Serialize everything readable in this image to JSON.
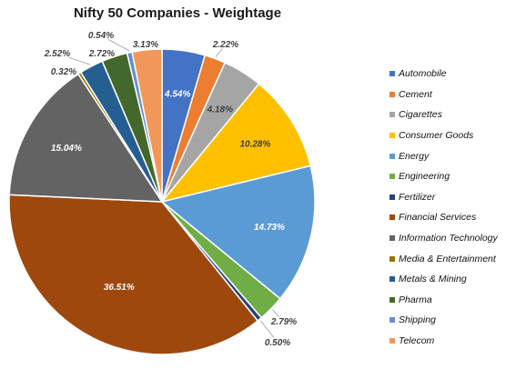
{
  "chart_data": {
    "type": "pie",
    "title": "Nifty 50 Companies - Weightage",
    "legend_position": "right",
    "slices": [
      {
        "name": "Automobile",
        "value": 4.54,
        "label": "4.54%",
        "color": "#4472C4"
      },
      {
        "name": "Cement",
        "value": 2.22,
        "label": "2.22%",
        "color": "#ED7D31"
      },
      {
        "name": "Cigarettes",
        "value": 4.18,
        "label": "4.18%",
        "color": "#A5A5A5"
      },
      {
        "name": "Consumer Goods",
        "value": 10.28,
        "label": "10.28%",
        "color": "#FFC000"
      },
      {
        "name": "Energy",
        "value": 14.73,
        "label": "14.73%",
        "color": "#5B9BD5"
      },
      {
        "name": "Engineering",
        "value": 2.79,
        "label": "2.79%",
        "color": "#70AD47"
      },
      {
        "name": "Fertilizer",
        "value": 0.5,
        "label": "0.50%",
        "color": "#264478"
      },
      {
        "name": "Financial Services",
        "value": 36.51,
        "label": "36.51%",
        "color": "#9E480E"
      },
      {
        "name": "Information Technology",
        "value": 15.04,
        "label": "15.04%",
        "color": "#636363"
      },
      {
        "name": "Media & Entertainment",
        "value": 0.32,
        "label": "0.32%",
        "color": "#997300"
      },
      {
        "name": "Metals & Mining",
        "value": 2.52,
        "label": "2.52%",
        "color": "#255E91"
      },
      {
        "name": "Pharma",
        "value": 2.72,
        "label": "2.72%",
        "color": "#43682B"
      },
      {
        "name": "Shipping",
        "value": 0.54,
        "label": "0.54%",
        "color": "#698ED0"
      },
      {
        "name": "Telecom",
        "value": 3.13,
        "label": "3.13%",
        "color": "#F1975A"
      }
    ]
  }
}
